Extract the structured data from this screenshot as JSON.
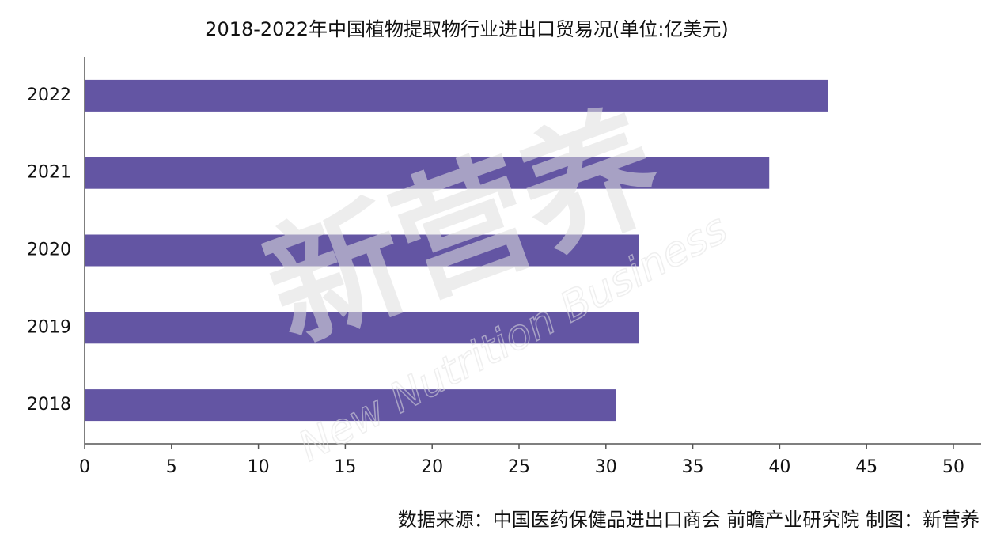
{
  "chart_data": {
    "type": "bar",
    "orientation": "horizontal",
    "title": "2018-2022年中国植物提取物行业进出口贸易况(单位:亿美元)",
    "categories": [
      "2022",
      "2021",
      "2020",
      "2019",
      "2018"
    ],
    "values": [
      42.8,
      39.4,
      31.9,
      31.9,
      30.6
    ],
    "color": "#6355a3",
    "xlim": [
      0,
      50
    ],
    "xticks": [
      0,
      5,
      10,
      15,
      20,
      25,
      30,
      35,
      40,
      45,
      50
    ],
    "grid": false,
    "source": "数据来源：中国医药保健品进出口商会 前瞻产业研究院   制图：新营养",
    "watermark": [
      "新营养",
      "New Nutrition Business"
    ]
  }
}
